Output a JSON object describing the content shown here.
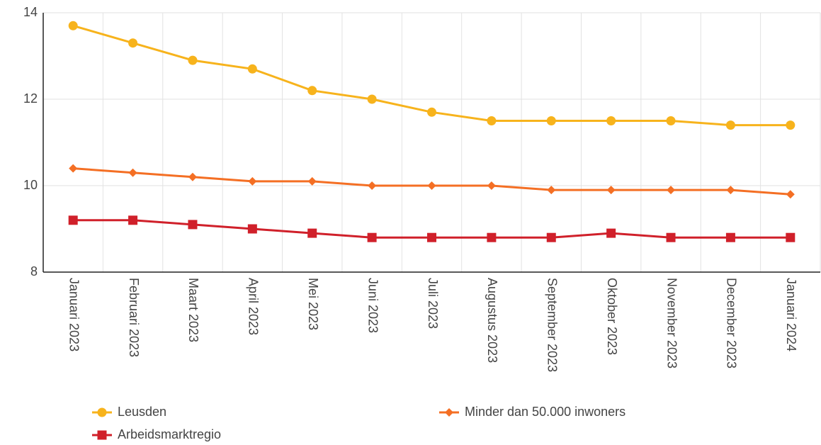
{
  "chart_data": {
    "type": "line",
    "categories": [
      "Januari 2023",
      "Februari 2023",
      "Maart 2023",
      "April 2023",
      "Mei 2023",
      "Juni 2023",
      "Juli 2023",
      "Augustus 2023",
      "September 2023",
      "Oktober 2023",
      "November 2023",
      "December 2023",
      "Januari 2024"
    ],
    "series": [
      {
        "name": "Leusden",
        "color": "#f7b31c",
        "marker": "circle",
        "values": [
          13.7,
          13.3,
          12.9,
          12.7,
          12.2,
          12.0,
          11.7,
          11.5,
          11.5,
          11.5,
          11.5,
          11.4,
          11.4
        ]
      },
      {
        "name": "Minder dan 50.000 inwoners",
        "color": "#f46f24",
        "marker": "diamond",
        "values": [
          10.4,
          10.3,
          10.2,
          10.1,
          10.1,
          10.0,
          10.0,
          10.0,
          9.9,
          9.9,
          9.9,
          9.9,
          9.8
        ]
      },
      {
        "name": "Arbeidsmarktregio",
        "color": "#d0202a",
        "marker": "square",
        "values": [
          9.2,
          9.2,
          9.1,
          9.0,
          8.9,
          8.8,
          8.8,
          8.8,
          8.8,
          8.9,
          8.8,
          8.8,
          8.8
        ]
      }
    ],
    "ylim": [
      8,
      14
    ],
    "yticks": [
      8,
      10,
      12,
      14
    ],
    "grid": true
  }
}
